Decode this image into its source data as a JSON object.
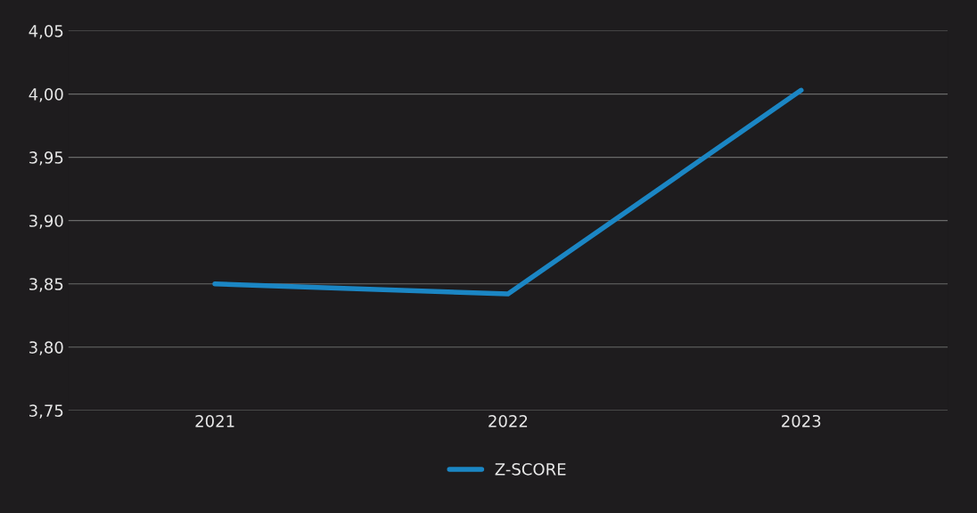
{
  "chart_data": {
    "type": "line",
    "categories": [
      "2021",
      "2022",
      "2023"
    ],
    "series": [
      {
        "name": "Z-SCORE",
        "color": "#1b86c4",
        "values": [
          3.85,
          3.842,
          4.003
        ]
      }
    ],
    "ylim": [
      3.75,
      4.05
    ],
    "yticks": [
      {
        "value": 3.75,
        "label": "3,75"
      },
      {
        "value": 3.8,
        "label": "3,80"
      },
      {
        "value": 3.85,
        "label": "3,85"
      },
      {
        "value": 3.9,
        "label": "3,90"
      },
      {
        "value": 3.95,
        "label": "3,95"
      },
      {
        "value": 4.0,
        "label": "4,00"
      },
      {
        "value": 4.05,
        "label": "4,05"
      }
    ],
    "grid": "y",
    "legend": "bottom",
    "marker": "none",
    "line_style": "solid"
  }
}
